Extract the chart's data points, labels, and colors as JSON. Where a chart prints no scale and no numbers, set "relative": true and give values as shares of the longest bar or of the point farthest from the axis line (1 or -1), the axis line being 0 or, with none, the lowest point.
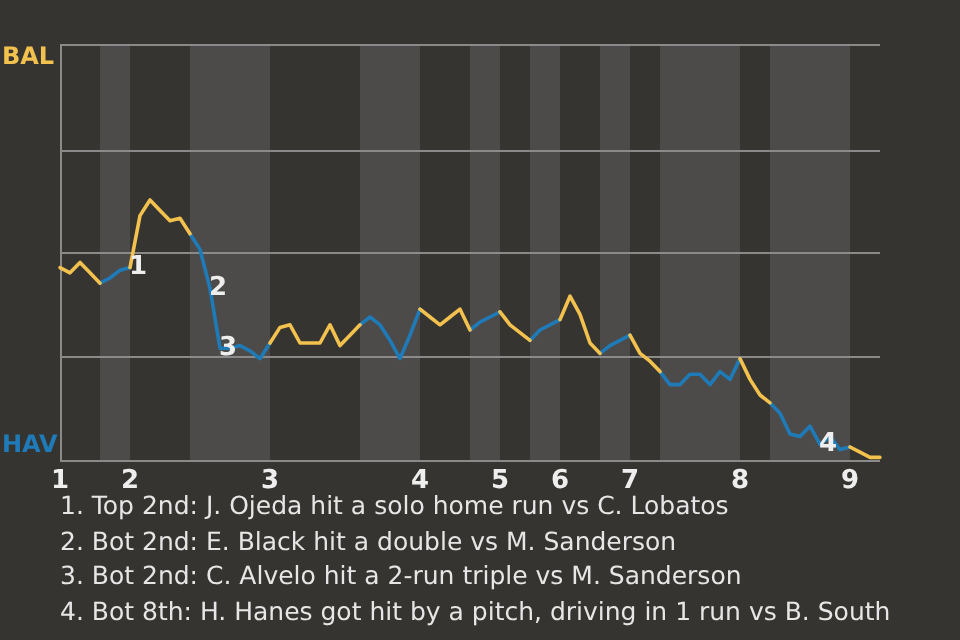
{
  "chart_data": {
    "type": "line",
    "relative": true,
    "marker": "none",
    "legend": false,
    "ref_lines": [
      {
        "axis": "y",
        "value": 0.4,
        "color": "#8a8a8a"
      },
      {
        "axis": "y",
        "value": 0.8,
        "color": "#8a8a8a"
      },
      {
        "axis": "y",
        "value": 1.19,
        "color": "#8a8a8a"
      }
    ],
    "categories": [
      "1",
      null,
      null,
      null,
      null,
      null,
      null,
      "2",
      null,
      null,
      null,
      null,
      null,
      null,
      null,
      null,
      null,
      null,
      null,
      null,
      null,
      "3",
      null,
      null,
      null,
      null,
      null,
      null,
      null,
      null,
      null,
      null,
      null,
      null,
      null,
      null,
      "4",
      null,
      null,
      null,
      null,
      null,
      null,
      null,
      "5",
      null,
      null,
      null,
      null,
      null,
      "6",
      null,
      null,
      null,
      null,
      null,
      null,
      "7",
      null,
      null,
      null,
      null,
      null,
      null,
      null,
      null,
      null,
      null,
      "8",
      null,
      null,
      null,
      null,
      null,
      null,
      null,
      null,
      null,
      null,
      "9",
      null,
      null,
      null
    ],
    "series": [
      {
        "name": "BAL",
        "color": "#f2c14e",
        "values": [
          0.74,
          0.72,
          0.76,
          0.72,
          0.68,
          null,
          null,
          0.74,
          0.94,
          1,
          0.96,
          0.92,
          0.93,
          0.87,
          null,
          null,
          null,
          null,
          null,
          null,
          null,
          0.45,
          0.51,
          0.52,
          0.45,
          0.45,
          0.45,
          0.52,
          0.44,
          0.48,
          0.52,
          null,
          null,
          null,
          null,
          null,
          0.58,
          0.55,
          0.52,
          0.55,
          0.58,
          0.5,
          null,
          null,
          0.57,
          0.52,
          0.49,
          0.46,
          null,
          null,
          0.54,
          0.63,
          0.56,
          0.45,
          0.41,
          null,
          null,
          0.48,
          0.41,
          0.38,
          0.34,
          null,
          null,
          null,
          null,
          null,
          null,
          null,
          0.39,
          0.31,
          0.25,
          0.22,
          null,
          null,
          null,
          null,
          null,
          null,
          null,
          0.05,
          0.03,
          0.01,
          0.01
        ]
      },
      {
        "name": "HAV",
        "color": "#1f7ab8",
        "values": [
          null,
          null,
          null,
          null,
          0.68,
          0.7,
          0.73,
          0.74,
          null,
          null,
          null,
          null,
          null,
          0.87,
          0.81,
          0.66,
          0.43,
          0.43,
          0.44,
          0.42,
          0.39,
          0.45,
          null,
          null,
          null,
          null,
          null,
          null,
          null,
          null,
          0.52,
          0.55,
          0.52,
          0.46,
          0.39,
          0.48,
          0.58,
          null,
          null,
          null,
          null,
          0.5,
          0.53,
          0.55,
          0.57,
          null,
          null,
          0.46,
          0.5,
          0.52,
          0.54,
          null,
          null,
          null,
          0.41,
          0.44,
          0.46,
          0.48,
          null,
          null,
          0.34,
          0.29,
          0.29,
          0.33,
          0.33,
          0.29,
          0.34,
          0.31,
          0.39,
          null,
          null,
          0.22,
          0.18,
          0.1,
          0.09,
          0.13,
          0.06,
          0.09,
          0.04,
          0.05,
          null,
          null,
          null
        ]
      }
    ],
    "annotations": [
      {
        "text": "1",
        "y": 0.74
      },
      {
        "text": "2",
        "y": 0.66
      },
      {
        "text": "3",
        "y": 0.43
      },
      {
        "text": "4",
        "y": 0.06
      },
      "1. Top 2nd: J. Ojeda hit a solo home run vs C. Lobatos",
      "2. Bot 2nd: E. Black hit a double vs M. Sanderson",
      "3. Bot 2nd: C. Alvelo hit a 2-run triple vs M. Sanderson",
      "4. Bot 8th: H. Hanes got hit by a pitch, driving in 1 run vs B. South"
    ]
  }
}
